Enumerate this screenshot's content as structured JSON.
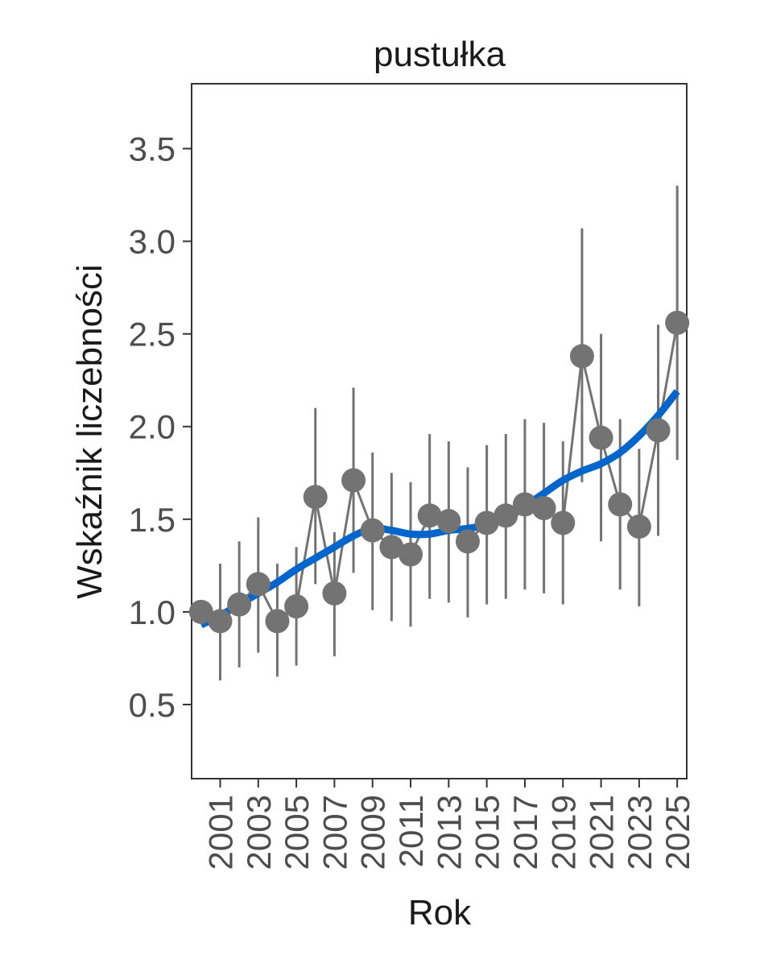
{
  "chart_data": {
    "type": "line",
    "title": "pustułka",
    "xlabel": "Rok",
    "ylabel": "Wskaźnik liczebności",
    "xlim": [
      1999.5,
      2025.5
    ],
    "ylim": [
      0.1,
      3.85
    ],
    "x_ticks": [
      2001,
      2003,
      2005,
      2007,
      2009,
      2011,
      2013,
      2015,
      2017,
      2019,
      2021,
      2023,
      2025
    ],
    "x_tick_labels": [
      "2001",
      "2003",
      "2005",
      "2007",
      "2009",
      "2011",
      "2013",
      "2015",
      "2017",
      "2019",
      "2021",
      "2023",
      "2025"
    ],
    "y_ticks": [
      0.5,
      1.0,
      1.5,
      2.0,
      2.5,
      3.0,
      3.5
    ],
    "y_tick_labels": [
      "0.5",
      "1.0",
      "1.5",
      "2.0",
      "2.5",
      "3.0",
      "3.5"
    ],
    "grid": false,
    "colors": {
      "points": "#737373",
      "trend": "#0066cc",
      "axis": "#333333",
      "tick_text": "#4d4d4d"
    },
    "series": [
      {
        "name": "Wskaźnik",
        "kind": "points_with_errorbars",
        "x": [
          2000,
          2001,
          2002,
          2003,
          2004,
          2005,
          2006,
          2007,
          2008,
          2009,
          2010,
          2011,
          2012,
          2013,
          2014,
          2015,
          2016,
          2017,
          2018,
          2019,
          2020,
          2021,
          2022,
          2023,
          2024,
          2025
        ],
        "y": [
          1.0,
          0.95,
          1.04,
          1.15,
          0.95,
          1.03,
          1.62,
          1.1,
          1.71,
          1.44,
          1.35,
          1.31,
          1.52,
          1.49,
          1.38,
          1.48,
          1.52,
          1.58,
          1.56,
          1.48,
          2.38,
          1.94,
          1.58,
          1.46,
          1.98,
          2.56
        ],
        "lower": [
          null,
          0.63,
          0.7,
          0.78,
          0.65,
          0.71,
          1.15,
          0.76,
          1.21,
          1.01,
          0.95,
          0.92,
          1.07,
          1.05,
          0.97,
          1.04,
          1.07,
          1.12,
          1.1,
          1.04,
          1.7,
          1.38,
          1.12,
          1.03,
          1.41,
          1.82
        ],
        "upper": [
          null,
          1.26,
          1.38,
          1.51,
          1.26,
          1.35,
          2.1,
          1.43,
          2.21,
          1.86,
          1.75,
          1.7,
          1.96,
          1.92,
          1.78,
          1.9,
          1.96,
          2.04,
          2.02,
          1.92,
          3.07,
          2.5,
          2.04,
          1.88,
          2.55,
          3.3
        ]
      },
      {
        "name": "Trend",
        "kind": "smooth_line",
        "x": [
          2000,
          2001,
          2002,
          2003,
          2004,
          2005,
          2006,
          2007,
          2008,
          2009,
          2010,
          2011,
          2012,
          2013,
          2014,
          2015,
          2016,
          2017,
          2018,
          2019,
          2020,
          2021,
          2022,
          2023,
          2024,
          2025
        ],
        "y": [
          0.93,
          0.98,
          1.04,
          1.1,
          1.16,
          1.23,
          1.29,
          1.35,
          1.41,
          1.45,
          1.44,
          1.42,
          1.42,
          1.44,
          1.45,
          1.47,
          1.5,
          1.57,
          1.64,
          1.71,
          1.76,
          1.8,
          1.86,
          1.95,
          2.06,
          2.19
        ]
      }
    ]
  }
}
